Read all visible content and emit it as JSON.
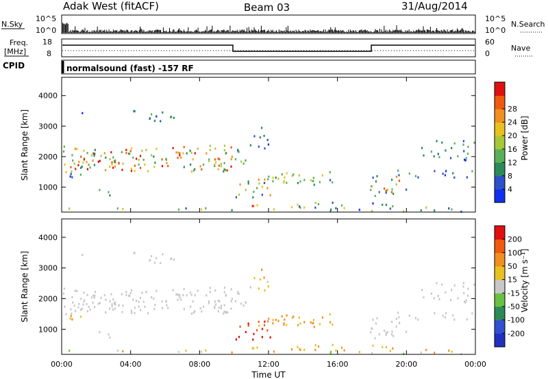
{
  "header": {
    "station": "Adak West (fitACF)",
    "beam": "Beam 03",
    "date": "31/Aug/2014"
  },
  "nsky_panel": {
    "left_label": "N.Sky",
    "right_label": "N.Search",
    "left_ticks": [
      "10^5",
      "10^0"
    ],
    "right_ticks": [
      "10^5",
      "10^0"
    ]
  },
  "freq_panel": {
    "left_label_1": "Freq.",
    "left_label_2": "[MHz]",
    "right_label": "Nave",
    "left_ticks": [
      "18",
      "8"
    ],
    "right_ticks": [
      "60",
      "0"
    ]
  },
  "cpid": {
    "label": "CPID",
    "value": "normalsound (fast) -157 RF"
  },
  "chart_data": [
    {
      "type": "heatmap",
      "name": "Power",
      "ylabel": "Slant Range [km]",
      "yticks": [
        1000,
        2000,
        3000,
        4000
      ],
      "ylim": [
        180,
        4600
      ],
      "xlim": [
        0,
        24
      ],
      "colorbar": {
        "label": "Power [dB]",
        "ticks": [
          "4",
          "8",
          "12",
          "16",
          "20",
          "24",
          "28"
        ],
        "colors": [
          "#1030f0",
          "#2e50c8",
          "#2a8a5a",
          "#5ab05a",
          "#a8c83a",
          "#e8c020",
          "#f09020",
          "#f05a10",
          "#e01010"
        ]
      }
    },
    {
      "type": "heatmap",
      "name": "Velocity",
      "ylabel": "Slant Range [km]",
      "yticks": [
        1000,
        2000,
        3000,
        4000
      ],
      "ylim": [
        180,
        4600
      ],
      "xlim": [
        0,
        24
      ],
      "colorbar": {
        "label": "Velocity [m s⁻¹]",
        "ticks": [
          "200",
          "100",
          "50",
          "15",
          "-15",
          "-50",
          "-100",
          "-200"
        ],
        "colors": [
          "#2030c0",
          "#3050d0",
          "#2a8a5a",
          "#6ac040",
          "#c8c8c8",
          "#e8c020",
          "#f09020",
          "#f05a10",
          "#e01010"
        ]
      }
    }
  ],
  "xaxis": {
    "ticks": [
      "00:00",
      "04:00",
      "08:00",
      "12:00",
      "16:00",
      "20:00",
      "00:00"
    ],
    "label": "Time UT"
  }
}
